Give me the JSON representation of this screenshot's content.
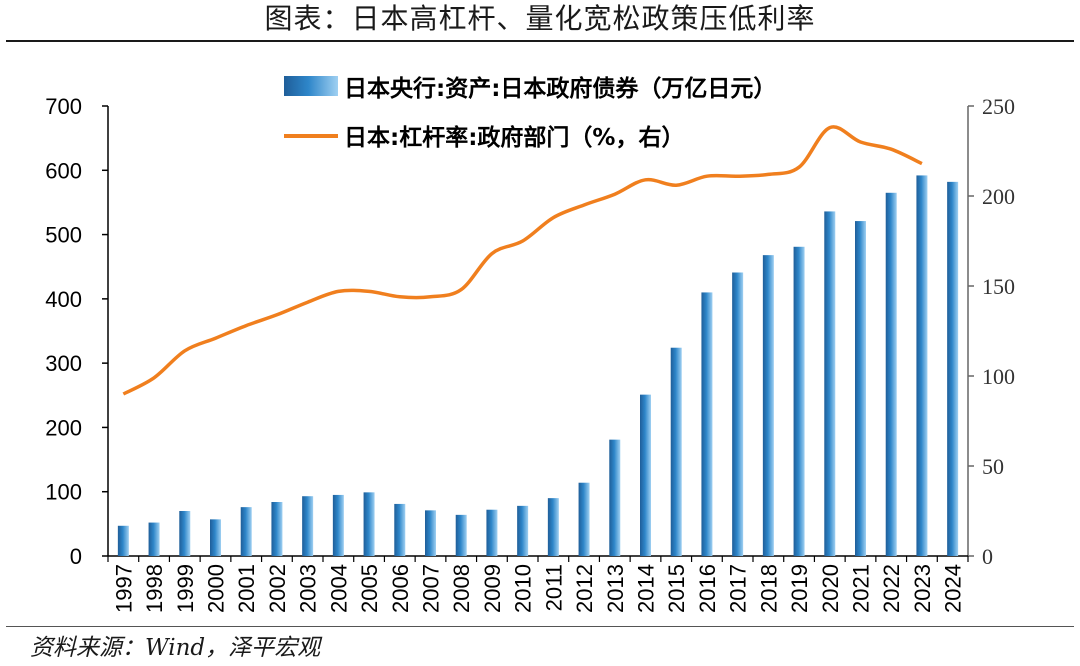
{
  "header": {
    "title": "图表：日本高杠杆、量化宽松政策压低利率"
  },
  "footer": {
    "source": "资料来源：Wind，泽平宏观"
  },
  "colors": {
    "bar": "#2E86C9",
    "line": "#F07F1E",
    "axis": "#000000"
  },
  "chart_data": {
    "type": "bar",
    "categories": [
      "1997",
      "1998",
      "1999",
      "2000",
      "2001",
      "2002",
      "2003",
      "2004",
      "2005",
      "2006",
      "2007",
      "2008",
      "2009",
      "2010",
      "2011",
      "2012",
      "2013",
      "2014",
      "2015",
      "2016",
      "2017",
      "2018",
      "2019",
      "2020",
      "2021",
      "2022",
      "2023",
      "2024"
    ],
    "series": [
      {
        "name": "日本央行:资产:日本政府债券（万亿日元）",
        "type": "bar",
        "axis": "left",
        "values": [
          47,
          52,
          70,
          57,
          76,
          84,
          93,
          95,
          99,
          81,
          71,
          64,
          72,
          78,
          90,
          114,
          181,
          251,
          324,
          410,
          441,
          468,
          481,
          536,
          521,
          565,
          592,
          582
        ]
      },
      {
        "name": "日本:杠杆率:政府部门（%，右）",
        "type": "line",
        "axis": "right",
        "values": [
          90,
          99,
          114,
          121,
          128,
          134,
          141,
          147,
          147,
          144,
          144,
          148,
          168,
          175,
          188,
          195,
          201,
          209,
          206,
          211,
          211,
          212,
          216,
          238,
          230,
          226,
          218,
          null
        ]
      }
    ],
    "y_left": {
      "min": 0,
      "max": 700,
      "ticks": [
        0,
        100,
        200,
        300,
        400,
        500,
        600,
        700
      ]
    },
    "y_right": {
      "min": 0,
      "max": 250,
      "ticks": [
        0,
        50,
        100,
        150,
        200,
        250
      ]
    },
    "legend_position": "top",
    "grid": false
  }
}
